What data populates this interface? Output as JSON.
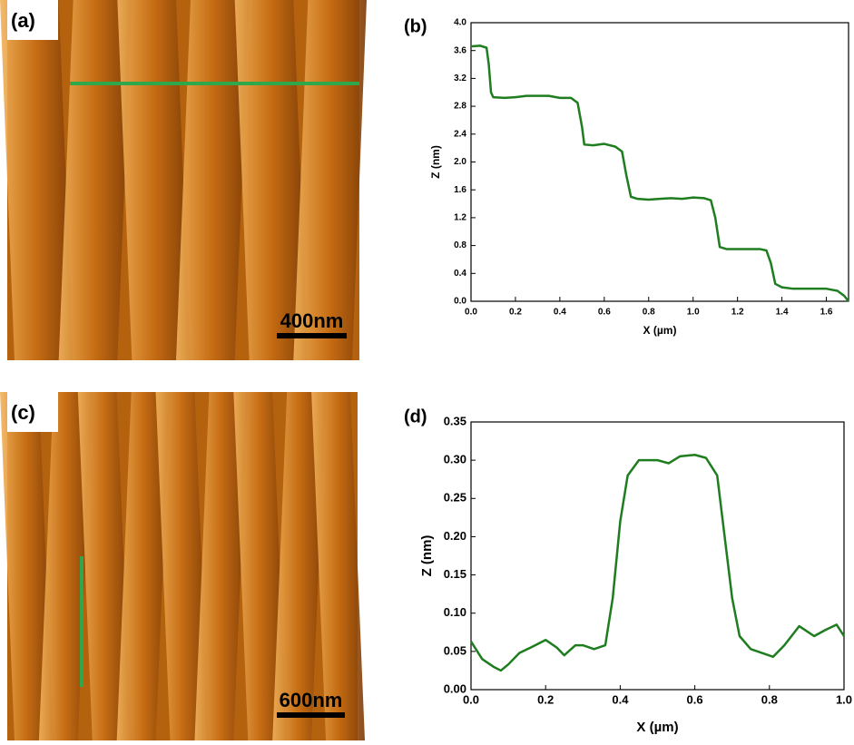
{
  "images": [
    {
      "label": "(a)",
      "scale_bar": "400nm"
    },
    {
      "label": "(c)",
      "scale_bar": "600nm"
    }
  ],
  "chart_data": [
    {
      "type": "line",
      "label": "(b)",
      "x_label": "X (µm)",
      "y_label": "Z (nm)",
      "color": "#1e7d1e",
      "x": [
        0,
        0.04,
        0.07,
        0.08,
        0.09,
        0.1,
        0.15,
        0.2,
        0.25,
        0.3,
        0.35,
        0.4,
        0.45,
        0.48,
        0.5,
        0.51,
        0.55,
        0.6,
        0.65,
        0.68,
        0.7,
        0.72,
        0.75,
        0.8,
        0.85,
        0.9,
        0.95,
        1.0,
        1.05,
        1.08,
        1.1,
        1.12,
        1.15,
        1.2,
        1.25,
        1.3,
        1.33,
        1.35,
        1.37,
        1.4,
        1.45,
        1.5,
        1.55,
        1.6,
        1.65,
        1.68,
        1.7
      ],
      "values": [
        3.66,
        3.67,
        3.64,
        3.4,
        3.0,
        2.93,
        2.92,
        2.93,
        2.95,
        2.95,
        2.95,
        2.92,
        2.92,
        2.85,
        2.5,
        2.25,
        2.24,
        2.26,
        2.22,
        2.15,
        1.8,
        1.5,
        1.47,
        1.46,
        1.47,
        1.48,
        1.47,
        1.49,
        1.48,
        1.45,
        1.2,
        0.78,
        0.75,
        0.75,
        0.75,
        0.75,
        0.73,
        0.55,
        0.25,
        0.2,
        0.18,
        0.18,
        0.18,
        0.18,
        0.15,
        0.08,
        0.0
      ],
      "xlim": [
        0,
        1.7
      ],
      "ylim": [
        0,
        4
      ],
      "xticks": [
        {
          "value": 0,
          "label": "0.0"
        },
        0.2,
        0.4,
        0.6,
        0.8,
        {
          "value": 1,
          "label": "1.0"
        },
        1.2,
        1.4,
        1.6
      ],
      "yticks": [
        {
          "value": 0,
          "label": "0.0"
        },
        0.4,
        0.8,
        1.2,
        1.6,
        {
          "value": 2,
          "label": "2.0"
        },
        2.4,
        2.8,
        3.2,
        3.6,
        {
          "value": 4,
          "label": "4.0"
        }
      ]
    },
    {
      "type": "line",
      "label": "(d)",
      "x_label": "X (µm)",
      "y_label": "Z (nm)",
      "color": "#1e7d1e",
      "x": [
        0,
        0.03,
        0.06,
        0.08,
        0.1,
        0.13,
        0.16,
        0.2,
        0.23,
        0.25,
        0.28,
        0.3,
        0.33,
        0.36,
        0.38,
        0.4,
        0.42,
        0.45,
        0.5,
        0.53,
        0.56,
        0.6,
        0.63,
        0.66,
        0.68,
        0.7,
        0.72,
        0.75,
        0.78,
        0.81,
        0.84,
        0.88,
        0.92,
        0.95,
        0.98,
        1.0
      ],
      "values": [
        0.063,
        0.04,
        0.03,
        0.025,
        0.033,
        0.048,
        0.055,
        0.065,
        0.055,
        0.045,
        0.058,
        0.058,
        0.053,
        0.058,
        0.12,
        0.22,
        0.28,
        0.3,
        0.3,
        0.296,
        0.305,
        0.307,
        0.303,
        0.28,
        0.2,
        0.12,
        0.07,
        0.053,
        0.048,
        0.043,
        0.058,
        0.083,
        0.07,
        0.078,
        0.085,
        0.07
      ],
      "xlim": [
        0,
        1
      ],
      "ylim": [
        0,
        0.35
      ],
      "xticks": [
        {
          "value": 0,
          "label": "0.0"
        },
        0.2,
        0.4,
        0.6,
        0.8,
        {
          "value": 1,
          "label": "1.0"
        }
      ],
      "yticks": [
        {
          "value": 0,
          "label": "0.00"
        },
        0.05,
        {
          "value": 0.1,
          "label": "0.10"
        },
        0.15,
        {
          "value": 0.2,
          "label": "0.20"
        },
        0.25,
        {
          "value": 0.3,
          "label": "0.30"
        },
        0.35
      ]
    }
  ]
}
